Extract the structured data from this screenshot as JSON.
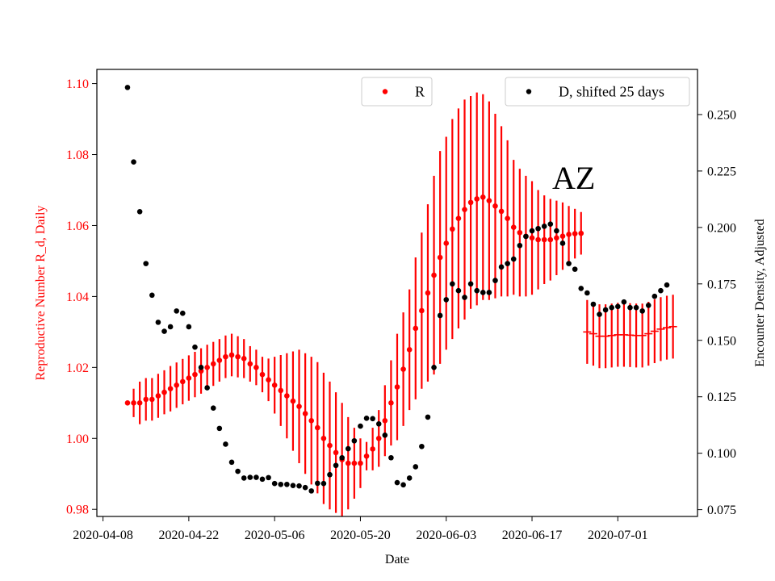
{
  "chart_data": {
    "type": "scatter",
    "title": "",
    "xlabel": "Date",
    "ylabel_left": "Reproductive Number R_d, Daily",
    "ylabel_right": "Encounter Density, Adjusted",
    "annotation": "AZ",
    "colors": {
      "r_series": "#ff0000",
      "d_series": "#000000",
      "left_axis_text": "#ff0000"
    },
    "x_ticks": [
      "2020-04-08",
      "2020-04-22",
      "2020-05-06",
      "2020-05-20",
      "2020-06-03",
      "2020-06-17",
      "2020-07-01"
    ],
    "y_left_ticks": [
      "0.98",
      "1.00",
      "1.02",
      "1.04",
      "1.06",
      "1.08",
      "1.10"
    ],
    "y_right_ticks": [
      "0.075",
      "0.100",
      "0.125",
      "0.150",
      "0.175",
      "0.200",
      "0.225",
      "0.250"
    ],
    "xlim": [
      "2020-04-07",
      "2020-07-14"
    ],
    "ylim_left": [
      0.978,
      1.104
    ],
    "ylim_right": [
      0.072,
      0.27
    ],
    "grid": false,
    "legend": [
      {
        "label": "R",
        "color": "#ff0000",
        "placement": "top-center"
      },
      {
        "label": "D, shifted 25 days",
        "color": "#000000",
        "placement": "top-right"
      }
    ],
    "series": [
      {
        "name": "R",
        "axis": "left",
        "start_date": "2020-04-12",
        "values": [
          1.01,
          1.01,
          1.01,
          1.011,
          1.011,
          1.012,
          1.013,
          1.014,
          1.015,
          1.016,
          1.017,
          1.018,
          1.019,
          1.02,
          1.021,
          1.022,
          1.023,
          1.0235,
          1.023,
          1.0225,
          1.021,
          1.02,
          1.018,
          1.0165,
          1.015,
          1.0135,
          1.012,
          1.0105,
          1.009,
          1.007,
          1.005,
          1.003,
          1.0,
          0.998,
          0.996,
          0.994,
          0.993,
          0.993,
          0.993,
          0.995,
          0.997,
          1.0,
          1.005,
          1.01,
          1.0145,
          1.0195,
          1.025,
          1.031,
          1.036,
          1.041,
          1.046,
          1.051,
          1.055,
          1.059,
          1.062,
          1.0645,
          1.0665,
          1.0675,
          1.068,
          1.067,
          1.0655,
          1.064,
          1.062,
          1.0595,
          1.058,
          1.057,
          1.0565,
          1.056,
          1.056,
          1.056,
          1.0565,
          1.057,
          1.0575,
          1.0577,
          1.0578,
          1.03,
          1.0295,
          1.0288,
          1.0288,
          1.029,
          1.0292,
          1.0292,
          1.0291,
          1.029,
          1.029,
          1.0295,
          1.0302,
          1.0308,
          1.0312,
          1.0315
        ],
        "error": [
          0.0,
          0.004,
          0.006,
          0.006,
          0.006,
          0.0062,
          0.0062,
          0.0064,
          0.0064,
          0.0064,
          0.0064,
          0.0064,
          0.0064,
          0.0064,
          0.0062,
          0.006,
          0.006,
          0.006,
          0.0058,
          0.0055,
          0.005,
          0.005,
          0.005,
          0.006,
          0.008,
          0.01,
          0.012,
          0.014,
          0.016,
          0.017,
          0.018,
          0.0185,
          0.0185,
          0.018,
          0.017,
          0.016,
          0.013,
          0.01,
          0.007,
          0.004,
          0.006,
          0.008,
          0.01,
          0.012,
          0.015,
          0.016,
          0.017,
          0.02,
          0.022,
          0.025,
          0.028,
          0.03,
          0.03,
          0.031,
          0.031,
          0.031,
          0.03,
          0.03,
          0.029,
          0.028,
          0.026,
          0.024,
          0.022,
          0.019,
          0.018,
          0.017,
          0.016,
          0.014,
          0.0125,
          0.0115,
          0.0105,
          0.0095,
          0.008,
          0.007,
          0.006,
          0.009,
          0.009,
          0.009,
          0.009,
          0.009,
          0.009,
          0.009,
          0.009,
          0.009,
          0.009,
          0.009,
          0.009,
          0.009,
          0.009,
          0.009
        ]
      },
      {
        "name": "D, shifted 25 days",
        "axis": "right",
        "start_date": "2020-04-12",
        "values": [
          0.262,
          0.229,
          0.207,
          0.184,
          0.17,
          0.158,
          0.154,
          0.156,
          0.163,
          0.162,
          0.156,
          0.147,
          0.138,
          0.129,
          0.12,
          0.111,
          0.104,
          0.096,
          0.092,
          0.089,
          0.0893,
          0.0893,
          0.0885,
          0.0892,
          0.0866,
          0.0862,
          0.0862,
          0.0857,
          0.0855,
          0.0848,
          0.0833,
          0.0867,
          0.0866,
          0.0905,
          0.0946,
          0.098,
          0.102,
          0.1055,
          0.112,
          0.1155,
          0.1153,
          0.113,
          0.108,
          0.098,
          0.087,
          0.086,
          0.089,
          0.094,
          0.103,
          0.116,
          0.138,
          0.161,
          0.168,
          0.175,
          0.172,
          0.169,
          0.175,
          0.172,
          0.1712,
          0.1712,
          0.1765,
          0.1825,
          0.184,
          0.186,
          0.192,
          0.196,
          0.1985,
          0.1995,
          0.2005,
          0.2015,
          0.1985,
          0.193,
          0.184,
          0.1815,
          0.173,
          0.171,
          0.166,
          0.1615,
          0.1635,
          0.1645,
          0.165,
          0.167,
          0.1645,
          0.1645,
          0.163,
          0.1655,
          0.1695,
          0.172,
          0.1745
        ]
      }
    ]
  }
}
